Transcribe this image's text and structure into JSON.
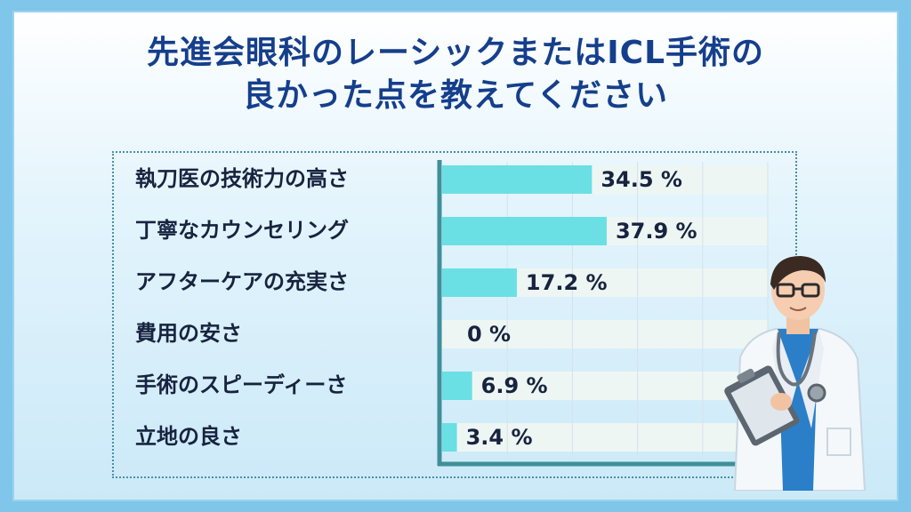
{
  "title": {
    "line1": "先進会眼科のレーシックまたはICL手術の",
    "line2": "良かった点を教えてください"
  },
  "chart_data": {
    "type": "bar",
    "orientation": "horizontal",
    "categories": [
      "執刀医の技術力の高さ",
      "丁寧なカウンセリング",
      "アフターケアの充実さ",
      "費用の安さ",
      "手術のスピーディーさ",
      "立地の良さ"
    ],
    "values": [
      34.5,
      37.9,
      17.2,
      0,
      6.9,
      3.4
    ],
    "value_labels": [
      "34.5 %",
      "37.9 %",
      "17.2 %",
      "0 %",
      "6.9 %",
      "3.4 %"
    ],
    "xlim": [
      0,
      75
    ],
    "grid": true
  },
  "colors": {
    "title": "#153f8c",
    "bar": "#6ae0e4",
    "track": "#eef6f4",
    "axis": "#3f8f9a",
    "label": "#17233f"
  },
  "illustration": "doctor-with-clipboard"
}
